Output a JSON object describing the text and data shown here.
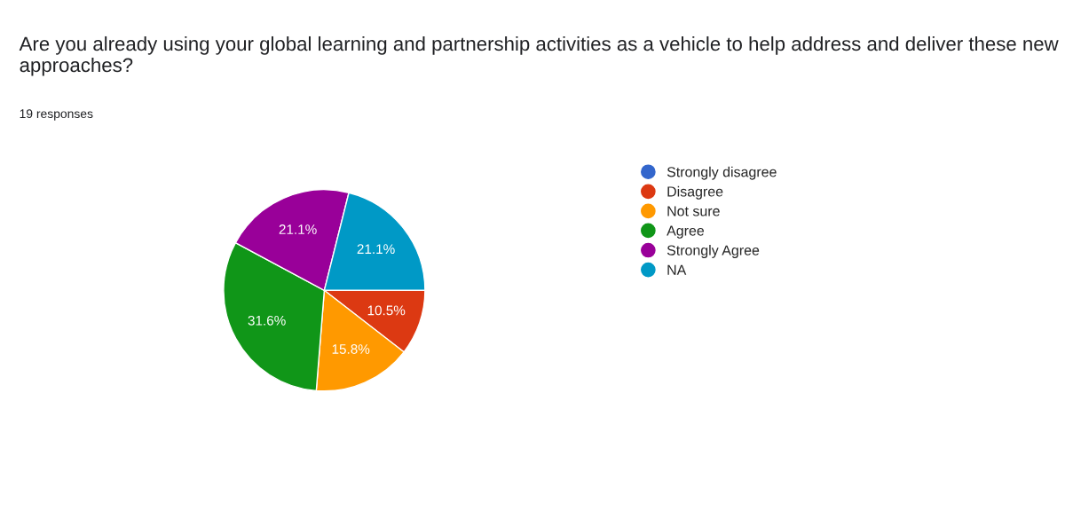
{
  "chart_data": {
    "type": "pie",
    "title": "Are you already using your global learning and partnership activities as a vehicle to help address and deliver these new approaches?",
    "subtitle": "19 responses",
    "categories": [
      "Strongly disagree",
      "Disagree",
      "Not sure",
      "Agree",
      "Strongly Agree",
      "NA"
    ],
    "values": [
      0,
      10.5,
      15.8,
      31.6,
      21.1,
      21.1
    ],
    "colors": [
      "#3366cc",
      "#dc3912",
      "#ff9900",
      "#109618",
      "#990099",
      "#0099c6"
    ],
    "value_labels": [
      null,
      "10.5%",
      "15.8%",
      "31.6%",
      "21.1%",
      "21.1%"
    ],
    "legend": "right"
  }
}
